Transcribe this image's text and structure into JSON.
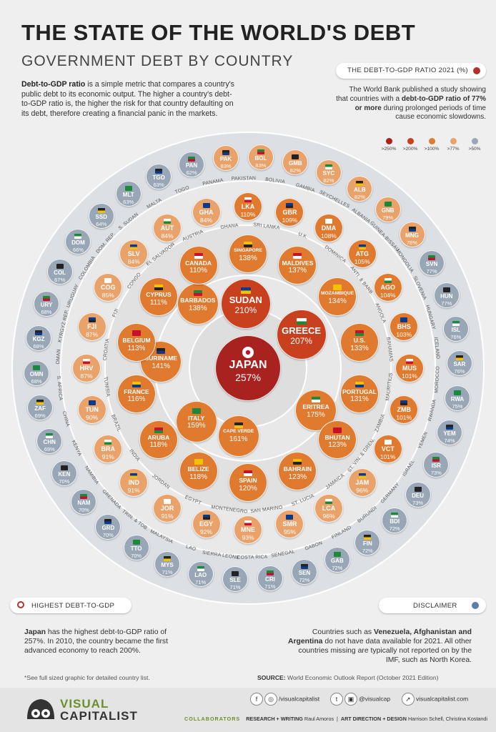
{
  "header": {
    "title": "THE STATE OF THE WORLD'S DEBT",
    "subtitle": "GOVERNMENT DEBT BY COUNTRY",
    "intro_bold": "Debt-to-GDP ratio",
    "intro_rest": " is a simple metric that compares a country's public debt to its economic output. The higher a country's debt-to-GDP ratio is, the higher the risk for that country defaulting on its debt, therefore creating a financial panic in the markets.",
    "ratio_pill": "THE DEBT-TO-GDP RATIO 2021 (%)",
    "study_a": "The World Bank published a study showing that countries with a ",
    "study_bold": "debt-to-GDP ratio of 77% or more",
    "study_b": " during prolonged periods of time cause economic slowdowns."
  },
  "legend": [
    {
      "label": ">250%",
      "color": "#a8231f"
    },
    {
      "label": ">200%",
      "color": "#c8401e"
    },
    {
      "label": ">100%",
      "color": "#e07a2e"
    },
    {
      "label": ">77%",
      "color": "#e9a26a"
    },
    {
      "label": ">50%",
      "color": "#98a6b6"
    }
  ],
  "chart_data": {
    "type": "bubble",
    "title": "THE STATE OF THE WORLD'S DEBT",
    "subtitle": "GOVERNMENT DEBT BY COUNTRY",
    "unit": "Debt-to-GDP ratio 2021 (%)",
    "rings": [
      [
        {
          "code": "JAPAN",
          "value": 257
        }
      ],
      [
        {
          "code": "SUDAN",
          "value": 210
        },
        {
          "code": "GREECE",
          "value": 207
        }
      ],
      [
        {
          "code": "ERITREA",
          "value": 175
        },
        {
          "code": "CAPE VERDE",
          "value": 161
        },
        {
          "code": "ITALY",
          "value": 159
        },
        {
          "code": "SURINAME",
          "value": 141
        },
        {
          "code": "BARBADOS",
          "value": 138
        }
      ],
      [
        {
          "code": "SINGAPORE",
          "value": 138
        },
        {
          "code": "MALDIVES",
          "value": 137
        },
        {
          "code": "MOZAMBIQUE",
          "value": 134
        },
        {
          "code": "U.S.",
          "value": 133
        },
        {
          "code": "PORTUGAL",
          "value": 131
        },
        {
          "code": "BHUTAN",
          "value": 123
        },
        {
          "code": "BAHRAIN",
          "value": 123
        },
        {
          "code": "SPAIN",
          "value": 120
        },
        {
          "code": "BELIZE",
          "value": 118
        },
        {
          "code": "ARUBA",
          "value": 118
        },
        {
          "code": "FRANCE",
          "value": 116
        },
        {
          "code": "BELGIUM",
          "value": 113
        },
        {
          "code": "CYPRUS",
          "value": 111
        },
        {
          "code": "CANADA",
          "value": 110
        }
      ],
      [
        {
          "code": "LKA",
          "value": 110,
          "name": "SRI LANKA"
        },
        {
          "code": "GBR",
          "value": 109,
          "name": "U.K."
        },
        {
          "code": "DMA",
          "value": 108,
          "name": "DOMINICA"
        },
        {
          "code": "ATG",
          "value": 105,
          "name": "ANTI. & BARB."
        },
        {
          "code": "AGO",
          "value": 104,
          "name": "ANGOLA"
        },
        {
          "code": "BHS",
          "value": 103,
          "name": "BAHAMAS"
        },
        {
          "code": "MUS",
          "value": 101,
          "name": "MAURITIUS"
        },
        {
          "code": "ZMB",
          "value": 101,
          "name": "ZAMBIA"
        },
        {
          "code": "VCT",
          "value": 101,
          "name": "ST. VIN. & GREN."
        },
        {
          "code": "JAM",
          "value": 96,
          "name": "JAMAICA"
        },
        {
          "code": "LCA",
          "value": 96,
          "name": "ST. LUCIA"
        },
        {
          "code": "SMR",
          "value": 95,
          "name": "SAN MARINO"
        },
        {
          "code": "MNE",
          "value": 93,
          "name": "MONTENEGRO"
        },
        {
          "code": "EGY",
          "value": 92,
          "name": "EGYPT"
        },
        {
          "code": "JOR",
          "value": 91,
          "name": "JORDAN"
        },
        {
          "code": "IND",
          "value": 91,
          "name": "INDIA"
        },
        {
          "code": "BRA",
          "value": 91,
          "name": "BRAZIL"
        },
        {
          "code": "TUN",
          "value": 90,
          "name": "TUNISIA"
        },
        {
          "code": "HRV",
          "value": 87,
          "name": "CROATIA"
        },
        {
          "code": "FJI",
          "value": 87,
          "name": "FIJI"
        },
        {
          "code": "COG",
          "value": 85,
          "name": "CONGO"
        },
        {
          "code": "SLV",
          "value": 84,
          "name": "EL SALVADOR"
        },
        {
          "code": "AUT",
          "value": 84,
          "name": "AUSTRIA"
        },
        {
          "code": "GHA",
          "value": 84,
          "name": "GHANA"
        }
      ],
      [
        {
          "code": "PAK",
          "value": 83,
          "name": "PAKISTAN"
        },
        {
          "code": "BOL",
          "value": 83,
          "name": "BOLIVIA"
        },
        {
          "code": "GMB",
          "value": 82,
          "name": "GAMBIA"
        },
        {
          "code": "SYC",
          "value": 82,
          "name": "SEYCHELLES"
        },
        {
          "code": "ALB",
          "value": 82,
          "name": "ALBANIA"
        },
        {
          "code": "GNB",
          "value": 79,
          "name": "GUINEA-BISSAU"
        },
        {
          "code": "MNG",
          "value": 78,
          "name": "MONGOLIA"
        },
        {
          "code": "SVN",
          "value": 77,
          "name": "SLOVENIA"
        },
        {
          "code": "HUN",
          "value": 77,
          "name": "HUNGARY"
        },
        {
          "code": "ISL",
          "value": 76,
          "name": "ICELAND"
        },
        {
          "code": "SAR",
          "value": 76,
          "name": "MOROCCO"
        },
        {
          "code": "RWA",
          "value": 75,
          "name": "RWANDA"
        },
        {
          "code": "YEM",
          "value": 74,
          "name": "YEMEN"
        },
        {
          "code": "ISR",
          "value": 73,
          "name": "ISRAEL"
        },
        {
          "code": "DEU",
          "value": 73,
          "name": "GERMANY"
        },
        {
          "code": "BDI",
          "value": 72,
          "name": "BURUNDI"
        },
        {
          "code": "FIN",
          "value": 72,
          "name": "FINLAND"
        },
        {
          "code": "GAB",
          "value": 72,
          "name": "GABON"
        },
        {
          "code": "SEN",
          "value": 72,
          "name": "SENEGAL"
        },
        {
          "code": "CRI",
          "value": 71,
          "name": "COSTA RICA"
        },
        {
          "code": "SLE",
          "value": 71,
          "name": "SIERRA LEONE"
        },
        {
          "code": "LAO",
          "value": 71,
          "name": "LAO"
        },
        {
          "code": "MYS",
          "value": 71,
          "name": "MALAYSIA"
        },
        {
          "code": "TTO",
          "value": 70,
          "name": "TRIN. & TOB."
        },
        {
          "code": "GRD",
          "value": 70,
          "name": "GRENADA"
        },
        {
          "code": "NAM",
          "value": 70,
          "name": "NAMIBIA"
        },
        {
          "code": "KEN",
          "value": 70,
          "name": "KENYA"
        },
        {
          "code": "CHN",
          "value": 69,
          "name": "CHINA"
        },
        {
          "code": "ZAF",
          "value": 69,
          "name": "S. AFRICA"
        },
        {
          "code": "OMN",
          "value": 68,
          "name": "OMAN"
        },
        {
          "code": "KGZ",
          "value": 68,
          "name": "KYRGYZ REP."
        },
        {
          "code": "URY",
          "value": 68,
          "name": "URUGUAY"
        },
        {
          "code": "COL",
          "value": 67,
          "name": "COLOMBIA"
        },
        {
          "code": "DOM",
          "value": 66,
          "name": "DOM. REP."
        },
        {
          "code": "SSD",
          "value": 64,
          "name": "S. SUDAN"
        },
        {
          "code": "MLT",
          "value": 63,
          "name": "MALTA"
        },
        {
          "code": "TGO",
          "value": 63,
          "name": "TOGO"
        },
        {
          "code": "PAN",
          "value": 62,
          "name": "PANAMA"
        }
      ]
    ]
  },
  "highest": {
    "pill": "HIGHEST DEBT-TO-GDP",
    "bold": "Japan",
    "text": " has the highest debt-to-GDP ratio of 257%. In 2010, the country became the first advanced economy to reach 200%."
  },
  "disclaimer": {
    "pill": "DISCLAIMER",
    "a": "Countries such as ",
    "b1": "Venezuela, Afghanistan and Argentina",
    "c": " do not have data available for 2021. All other countries missing are typically not reported on by the IMF, such as North Korea."
  },
  "footnote": "*See full sized graphic for detailed country list.",
  "source_label": "SOURCE:",
  "source_text": " World Economic Outlook Report (October 2021 Edition)",
  "footer": {
    "logo_1": "VISUAL",
    "logo_2": "CAPITALIST",
    "fb": "/visualcapitalist",
    "tw": "@visualcap",
    "web": "visualcapitalist.com",
    "collab_label": "COLLABORATORS",
    "research_label": "RESEARCH + WRITING",
    "research": "Raul Amoros",
    "art_label": "ART DIRECTION + DESIGN",
    "art": "Harrison Schell, Christina Kostandi"
  }
}
